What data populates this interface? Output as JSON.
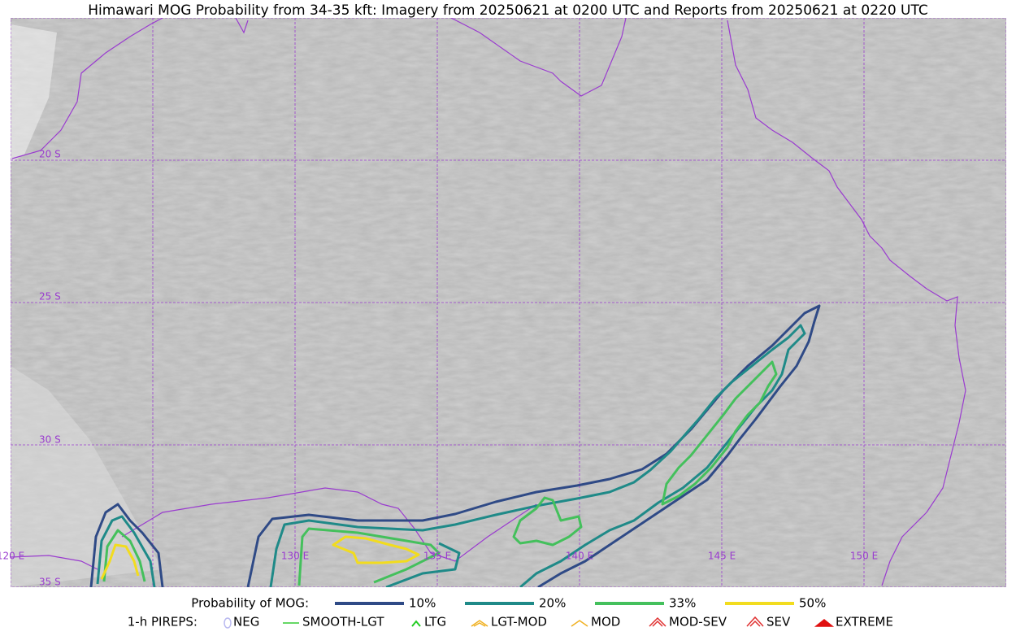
{
  "title": "Himawari MOG Probability from 34-35 kft: Imagery from 20250621 at 0200 UTC and Reports from 20250621 at 0220 UTC",
  "map": {
    "lat_labels": [
      "20 S",
      "25 S",
      "30 S",
      "35 S"
    ],
    "lon_labels": [
      "120 E",
      "130 E",
      "135 E",
      "140 E",
      "145 E",
      "150 E"
    ]
  },
  "legend": {
    "probability": {
      "label": "Probability of MOG:",
      "levels": [
        {
          "label": "10%",
          "color": "#2f4a86"
        },
        {
          "label": "20%",
          "color": "#1f8a88"
        },
        {
          "label": "33%",
          "color": "#44c05c"
        },
        {
          "label": "50%",
          "color": "#f2dc1e"
        }
      ]
    },
    "pireps": {
      "label": "1-h PIREPS:",
      "items": [
        {
          "label": "NEG",
          "color": "#b8b8f0"
        },
        {
          "label": "SMOOTH-LGT",
          "color": "#33cc33"
        },
        {
          "label": "LTG",
          "color": "#22cc22"
        },
        {
          "label": "LGT-MOD",
          "color": "#f0b020"
        },
        {
          "label": "MOD",
          "color": "#f0b020"
        },
        {
          "label": "MOD-SEV",
          "color": "#e03030"
        },
        {
          "label": "SEV",
          "color": "#e03030"
        },
        {
          "label": "EXTREME",
          "color": "#e01010"
        }
      ]
    }
  }
}
